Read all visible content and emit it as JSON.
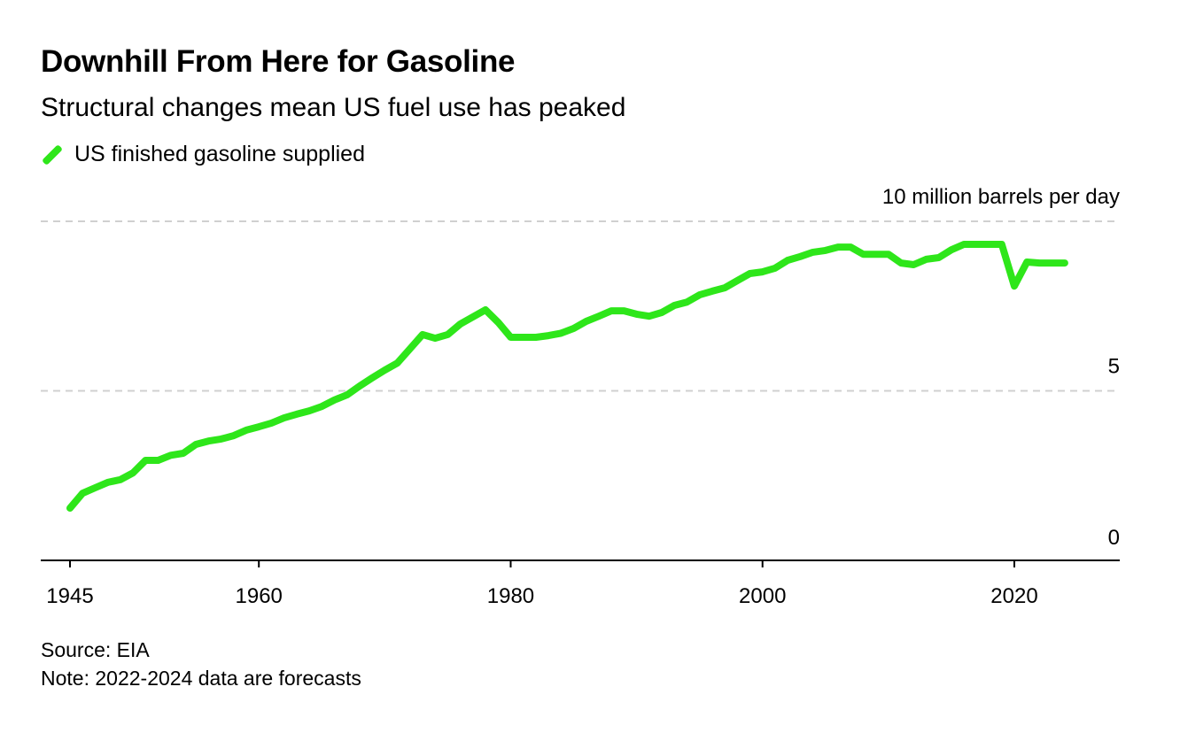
{
  "title": "Downhill From Here for Gasoline",
  "subtitle": "Structural changes mean US fuel use has peaked",
  "source": "Source: EIA",
  "note": "Note: 2022-2024 data are forecasts",
  "chart_data": {
    "type": "line",
    "title": "Downhill From Here for Gasoline",
    "ylabel": "10 million barrels per day",
    "ylim": [
      0,
      10
    ],
    "xlim": [
      1942.5,
      2028.5
    ],
    "y_ticks": [
      {
        "v": 0,
        "label": "0"
      },
      {
        "v": 5,
        "label": "5"
      },
      {
        "v": 10,
        "label": "10 million barrels per day"
      }
    ],
    "x_ticks": [
      {
        "v": 1945,
        "label": "1945"
      },
      {
        "v": 1960,
        "label": "1960"
      },
      {
        "v": 1980,
        "label": "1980"
      },
      {
        "v": 2000,
        "label": "2000"
      },
      {
        "v": 2020,
        "label": "2020"
      }
    ],
    "grid": true,
    "legend": "top-left",
    "series": [
      {
        "name": "US finished gasoline supplied",
        "color": "#2ee61a",
        "x": [
          1945,
          1946,
          1947,
          1948,
          1949,
          1950,
          1951,
          1952,
          1953,
          1954,
          1955,
          1956,
          1957,
          1958,
          1959,
          1960,
          1961,
          1962,
          1963,
          1964,
          1965,
          1966,
          1967,
          1968,
          1969,
          1970,
          1971,
          1972,
          1973,
          1974,
          1975,
          1976,
          1977,
          1978,
          1979,
          1980,
          1981,
          1982,
          1983,
          1984,
          1985,
          1986,
          1987,
          1988,
          1989,
          1990,
          1991,
          1992,
          1993,
          1994,
          1995,
          1996,
          1997,
          1998,
          1999,
          2000,
          2001,
          2002,
          2003,
          2004,
          2005,
          2006,
          2007,
          2008,
          2009,
          2010,
          2011,
          2012,
          2013,
          2014,
          2015,
          2016,
          2017,
          2018,
          2019,
          2020,
          2021,
          2022,
          2023,
          2024
        ],
        "values": [
          1.54,
          1.98,
          2.14,
          2.3,
          2.38,
          2.58,
          2.95,
          2.95,
          3.1,
          3.16,
          3.42,
          3.52,
          3.58,
          3.68,
          3.84,
          3.94,
          4.05,
          4.2,
          4.31,
          4.41,
          4.54,
          4.73,
          4.88,
          5.14,
          5.38,
          5.61,
          5.82,
          6.24,
          6.66,
          6.55,
          6.66,
          6.97,
          7.18,
          7.39,
          7.02,
          6.58,
          6.58,
          6.58,
          6.63,
          6.7,
          6.84,
          7.05,
          7.2,
          7.36,
          7.36,
          7.26,
          7.2,
          7.31,
          7.52,
          7.62,
          7.83,
          7.94,
          8.04,
          8.25,
          8.46,
          8.51,
          8.62,
          8.85,
          8.96,
          9.09,
          9.14,
          9.24,
          9.24,
          9.03,
          9.03,
          9.03,
          8.77,
          8.72,
          8.88,
          8.93,
          9.16,
          9.32,
          9.32,
          9.32,
          9.32,
          8.09,
          8.8,
          8.77,
          8.77,
          8.77
        ]
      }
    ]
  }
}
